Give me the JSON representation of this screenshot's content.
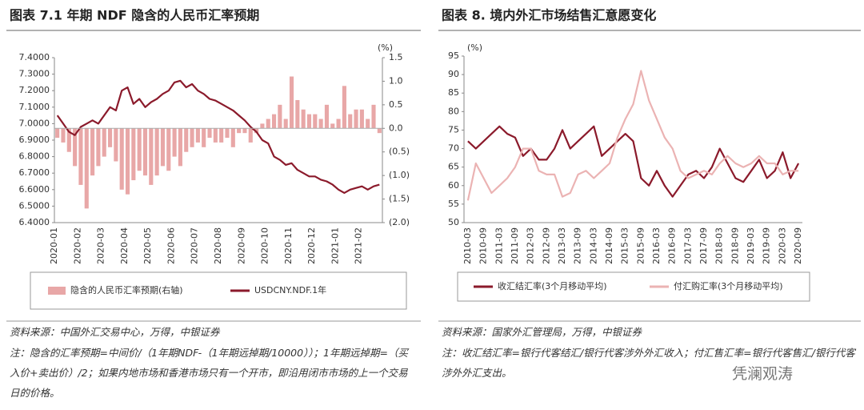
{
  "chart_data": [
    {
      "type": "combo",
      "title": "图表 7.1 年期 NDF 隐含的人民币汇率预期",
      "y2_unit": "(%)",
      "categories": [
        "2020-01",
        null,
        null,
        null,
        "2020-02",
        null,
        null,
        null,
        "2020-03",
        null,
        null,
        null,
        "2020-04",
        null,
        null,
        null,
        "2020-05",
        null,
        null,
        null,
        "2020-06",
        null,
        null,
        null,
        "2020-07",
        null,
        null,
        null,
        "2020-08",
        null,
        null,
        null,
        "2020-09",
        null,
        null,
        null,
        "2020-10",
        null,
        null,
        null,
        "2020-11",
        null,
        null,
        null,
        "2020-12",
        null,
        null,
        null,
        "2021-01",
        null,
        null,
        null,
        "2021-02",
        null,
        null,
        null
      ],
      "series": [
        {
          "name": "隐含的人民币汇率预期(右轴)",
          "type": "bar",
          "axis": "y2",
          "color": "#e8a7a7",
          "values": [
            -0.2,
            -0.3,
            -0.5,
            -0.8,
            -1.2,
            -1.7,
            -1.0,
            -0.8,
            -0.6,
            -0.4,
            -0.7,
            -1.3,
            -1.4,
            -1.1,
            -0.9,
            -1.0,
            -1.2,
            -1.0,
            -0.8,
            -0.9,
            -0.6,
            -0.8,
            -0.5,
            -0.4,
            -0.3,
            -0.4,
            -0.2,
            -0.3,
            -0.3,
            -0.2,
            -0.4,
            -0.1,
            -0.1,
            -0.3,
            -0.1,
            0.1,
            0.2,
            0.3,
            0.5,
            0.2,
            1.1,
            0.6,
            0.4,
            0.3,
            0.3,
            0.2,
            0.5,
            0.1,
            0.2,
            0.9,
            0.3,
            0.4,
            0.4,
            0.2,
            0.5,
            -0.1
          ]
        },
        {
          "name": "USDCNY.NDF.1年",
          "type": "line",
          "axis": "y",
          "color": "#8b1a2b",
          "values": [
            7.05,
            7.0,
            6.95,
            6.93,
            6.98,
            7.0,
            7.02,
            7.0,
            7.05,
            7.1,
            7.08,
            7.2,
            7.22,
            7.12,
            7.15,
            7.1,
            7.13,
            7.15,
            7.18,
            7.2,
            7.25,
            7.26,
            7.22,
            7.24,
            7.2,
            7.18,
            7.15,
            7.14,
            7.12,
            7.1,
            7.08,
            7.05,
            7.02,
            6.98,
            6.95,
            6.9,
            6.88,
            6.8,
            6.78,
            6.75,
            6.76,
            6.72,
            6.7,
            6.68,
            6.68,
            6.66,
            6.65,
            6.63,
            6.6,
            6.58,
            6.6,
            6.61,
            6.62,
            6.6,
            6.62,
            6.63
          ]
        }
      ],
      "ylim": [
        6.4,
        7.4
      ],
      "yticks": [
        {
          "value": 7.4,
          "label": "7.4000"
        },
        {
          "value": 7.3,
          "label": "7.3000"
        },
        {
          "value": 7.2,
          "label": "7.2000"
        },
        {
          "value": 7.1,
          "label": "7.1000"
        },
        {
          "value": 7.0,
          "label": "7.0000"
        },
        {
          "value": 6.9,
          "label": "6.9000"
        },
        {
          "value": 6.8,
          "label": "6.8000"
        },
        {
          "value": 6.7,
          "label": "6.7000"
        },
        {
          "value": 6.6,
          "label": "6.6000"
        },
        {
          "value": 6.5,
          "label": "6.5000"
        },
        {
          "value": 6.4,
          "label": "6.4000"
        }
      ],
      "y2lim": [
        -2,
        1.5
      ],
      "y2ticks": [
        1.5,
        {
          "value": 1,
          "label": "1.0"
        },
        0.5,
        {
          "value": 0,
          "label": "0.0"
        },
        {
          "value": -0.5,
          "label": "(0.5)"
        },
        {
          "value": -1,
          "label": "(1.0)"
        },
        {
          "value": -1.5,
          "label": "(1.5)"
        },
        {
          "value": -2,
          "label": "(2.0)"
        }
      ],
      "source": "资料来源：中国外汇交易中心，万得，中银证券",
      "note": "注：隐含的汇率预期=中间价/（1年期NDF-（1年期远掉期/10000））；1年期远掉期=（买入价+卖出价）/2；如果内地市场和香港市场只有一个开市，即沿用闭市市场的上一个交易日的价格。"
    },
    {
      "type": "line",
      "title": "图表 8. 境内外汇市场结售汇意愿变化",
      "y_unit": "(%)",
      "categories": [
        "2010-03",
        null,
        "2010-09",
        null,
        "2011-03",
        null,
        "2011-09",
        null,
        "2012-03",
        null,
        "2012-09",
        null,
        "2013-03",
        null,
        "2013-09",
        null,
        "2014-03",
        null,
        "2014-09",
        null,
        "2015-03",
        null,
        "2015-09",
        null,
        "2016-03",
        null,
        "2016-09",
        null,
        "2017-03",
        null,
        "2017-09",
        null,
        "2018-03",
        null,
        "2018-09",
        null,
        "2019-03",
        null,
        "2019-09",
        null,
        "2020-03",
        null,
        "2020-09"
      ],
      "series": [
        {
          "name": "收汇结汇率(3个月移动平均)",
          "color": "#8b1a2b",
          "values": [
            72,
            70,
            72,
            74,
            76,
            74,
            73,
            68,
            70,
            67,
            67,
            70,
            75,
            70,
            72,
            74,
            76,
            68,
            70,
            72,
            74,
            72,
            62,
            60,
            64,
            60,
            57,
            60,
            63,
            64,
            62,
            65,
            70,
            66,
            62,
            61,
            64,
            67,
            62,
            64,
            69,
            62,
            66
          ]
        },
        {
          "name": "付汇购汇率(3个月移动平均)",
          "color": "#ebb3b3",
          "values": [
            56,
            66,
            62,
            58,
            60,
            62,
            65,
            70,
            70,
            64,
            63,
            63,
            57,
            58,
            63,
            64,
            62,
            64,
            66,
            73,
            78,
            82,
            91,
            83,
            78,
            73,
            70,
            64,
            62,
            63,
            64,
            63,
            66,
            68,
            66,
            65,
            66,
            68,
            66,
            66,
            63,
            64,
            64
          ]
        }
      ],
      "ylim": [
        50,
        95
      ],
      "yticks": [
        95,
        90,
        85,
        80,
        75,
        70,
        65,
        60,
        55,
        50
      ],
      "source": "资料来源：国家外汇管理局，万得，中银证券",
      "note": "注：收汇结汇率=银行代客结汇/银行代客涉外外汇收入；付汇售汇率=银行代客售汇/银行代客涉外外汇支出。"
    }
  ],
  "watermark": "凭澜观涛"
}
